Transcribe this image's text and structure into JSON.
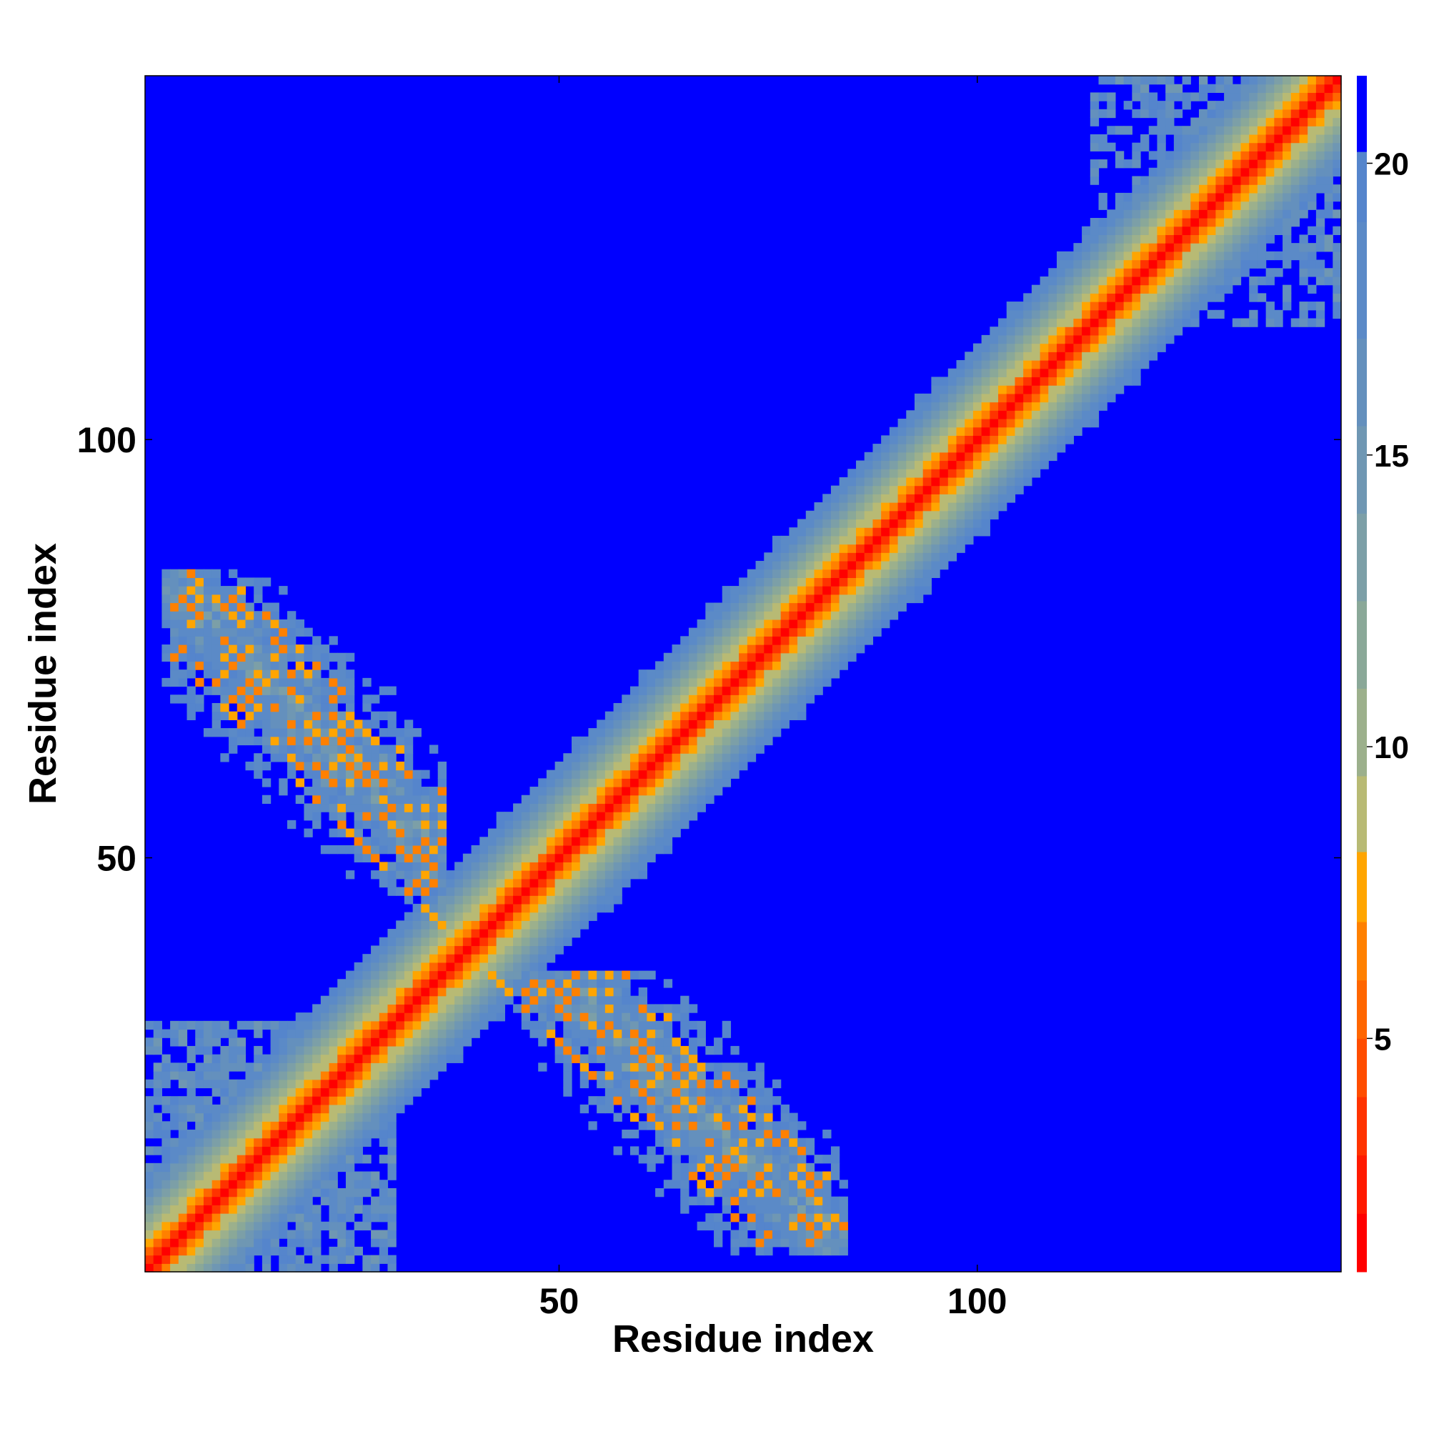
{
  "chart_data": {
    "type": "heatmap",
    "title": "",
    "xlabel": "Residue index",
    "ylabel": "Residue index",
    "n_residues": 143,
    "xlim": [
      0.5,
      143.5
    ],
    "ylim": [
      0.5,
      143.5
    ],
    "x_ticks": [
      50,
      100
    ],
    "y_ticks": [
      50,
      100
    ],
    "x_tick_labels": [
      "50",
      "100"
    ],
    "y_tick_labels": [
      "50",
      "100"
    ],
    "grid": false,
    "colorbar": {
      "position": "right",
      "ticks": [
        5,
        10,
        15,
        20
      ],
      "tick_labels": [
        "5",
        "10",
        "15",
        "20"
      ],
      "range": [
        1,
        21.5
      ],
      "levels": [
        {
          "max": 2,
          "color": "#ff0000"
        },
        {
          "max": 3,
          "color": "#ff1a00"
        },
        {
          "max": 4,
          "color": "#ff3300"
        },
        {
          "max": 5,
          "color": "#ff4d00"
        },
        {
          "max": 6,
          "color": "#ff6600"
        },
        {
          "max": 7,
          "color": "#ff8000"
        },
        {
          "max": 8.2,
          "color": "#ffa500"
        },
        {
          "max": 9.5,
          "color": "#b8ba74"
        },
        {
          "max": 11,
          "color": "#9cb08c"
        },
        {
          "max": 12.5,
          "color": "#8aa898"
        },
        {
          "max": 14,
          "color": "#7c9fa7"
        },
        {
          "max": 15.5,
          "color": "#6f97b3"
        },
        {
          "max": 17,
          "color": "#6490bd"
        },
        {
          "max": 19,
          "color": "#5b8ac7"
        },
        {
          "max": 20.2,
          "color": "#5585cc"
        },
        {
          "max": 99,
          "color": "#0000ff"
        }
      ]
    },
    "structure": {
      "diagonal_band": "distance grows with |i-j|; red at |i-j|<=1, orange/yellow to ~3, green-grey to ~8, blue-grey to ~10, saturated blue beyond",
      "contact_regions": [
        {
          "i": [
            3,
            36
          ],
          "j": [
            39,
            84
          ],
          "description": "anti-parallel contact patch, upper-left and its mirror lower-right"
        },
        {
          "i": [
            114,
            143
          ],
          "j": [
            118,
            143
          ],
          "description": "noisy patch at C-terminal end"
        },
        {
          "i": [
            1,
            30
          ],
          "j": [
            1,
            30
          ],
          "description": "noisy patch near N-terminal end"
        }
      ]
    }
  }
}
